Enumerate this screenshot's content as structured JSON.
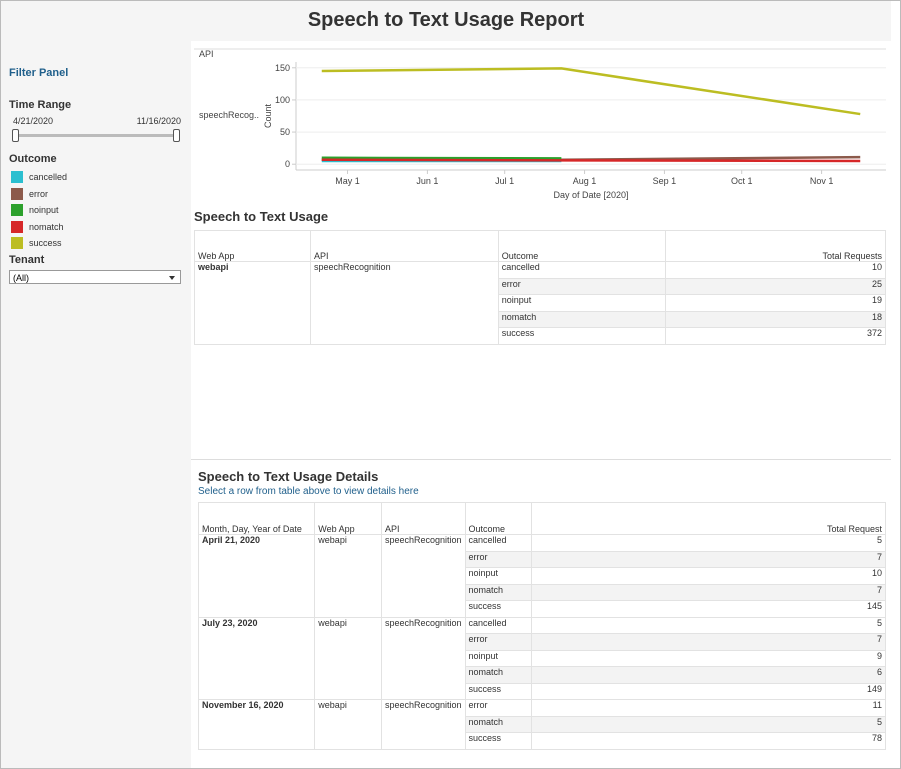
{
  "header": {
    "title": "Speech to Text Usage Report"
  },
  "filter_panel": {
    "title": "Filter Panel",
    "time_range": {
      "label": "Time Range",
      "start": "4/21/2020",
      "end": "11/16/2020"
    },
    "outcome_label": "Outcome",
    "tenant": {
      "label": "Tenant",
      "value": "(All)"
    }
  },
  "chart_data": {
    "type": "line",
    "title": "API",
    "row_label": "speechRecog..",
    "y_label": "Count",
    "x_label": "Day of Date [2020]",
    "x": [
      112,
      205,
      321
    ],
    "xlim": [
      102,
      331
    ],
    "xticks": [
      {
        "value": 122,
        "label": "May 1"
      },
      {
        "value": 153,
        "label": "Jun 1"
      },
      {
        "value": 183,
        "label": "Jul 1"
      },
      {
        "value": 214,
        "label": "Aug 1"
      },
      {
        "value": 245,
        "label": "Sep 1"
      },
      {
        "value": 275,
        "label": "Oct 1"
      },
      {
        "value": 306,
        "label": "Nov 1"
      }
    ],
    "ylim": [
      -9,
      159
    ],
    "yticks": [
      0,
      50,
      100,
      150
    ],
    "grid": true,
    "series": [
      {
        "name": "cancelled",
        "color": "#2bbfd0",
        "values": [
          5,
          5,
          null
        ]
      },
      {
        "name": "error",
        "color": "#8c5a4b",
        "values": [
          7,
          7,
          11
        ]
      },
      {
        "name": "noinput",
        "color": "#2ca02c",
        "values": [
          10,
          9,
          null
        ]
      },
      {
        "name": "nomatch",
        "color": "#d62728",
        "values": [
          7,
          6,
          5
        ]
      },
      {
        "name": "success",
        "color": "#bcbd22",
        "values": [
          145,
          149,
          78
        ]
      }
    ]
  },
  "summary": {
    "title": "Speech to Text Usage",
    "headers": [
      "Web App",
      "API",
      "Outcome",
      "Total Requests"
    ],
    "web_app": "webapi",
    "api": "speechRecognition",
    "rows": [
      [
        "cancelled",
        "10"
      ],
      [
        "error",
        "25"
      ],
      [
        "noinput",
        "19"
      ],
      [
        "nomatch",
        "18"
      ],
      [
        "success",
        "372"
      ]
    ]
  },
  "details": {
    "title": "Speech to Text Usage Details",
    "subtitle": "Select a row from table above to view details here",
    "headers": [
      "Month, Day, Year of Date",
      "Web App",
      "API",
      "Outcome",
      "Total Request"
    ],
    "groups": [
      {
        "date": "April 21, 2020",
        "web_app": "webapi",
        "api": "speechRecognition",
        "rows": [
          [
            "cancelled",
            "5"
          ],
          [
            "error",
            "7"
          ],
          [
            "noinput",
            "10"
          ],
          [
            "nomatch",
            "7"
          ],
          [
            "success",
            "145"
          ]
        ]
      },
      {
        "date": "July 23, 2020",
        "web_app": "webapi",
        "api": "speechRecognition",
        "rows": [
          [
            "cancelled",
            "5"
          ],
          [
            "error",
            "7"
          ],
          [
            "noinput",
            "9"
          ],
          [
            "nomatch",
            "6"
          ],
          [
            "success",
            "149"
          ]
        ]
      },
      {
        "date": "November 16, 2020",
        "web_app": "webapi",
        "api": "speechRecognition",
        "rows": [
          [
            "error",
            "11"
          ],
          [
            "nomatch",
            "5"
          ],
          [
            "success",
            "78"
          ]
        ]
      }
    ]
  }
}
